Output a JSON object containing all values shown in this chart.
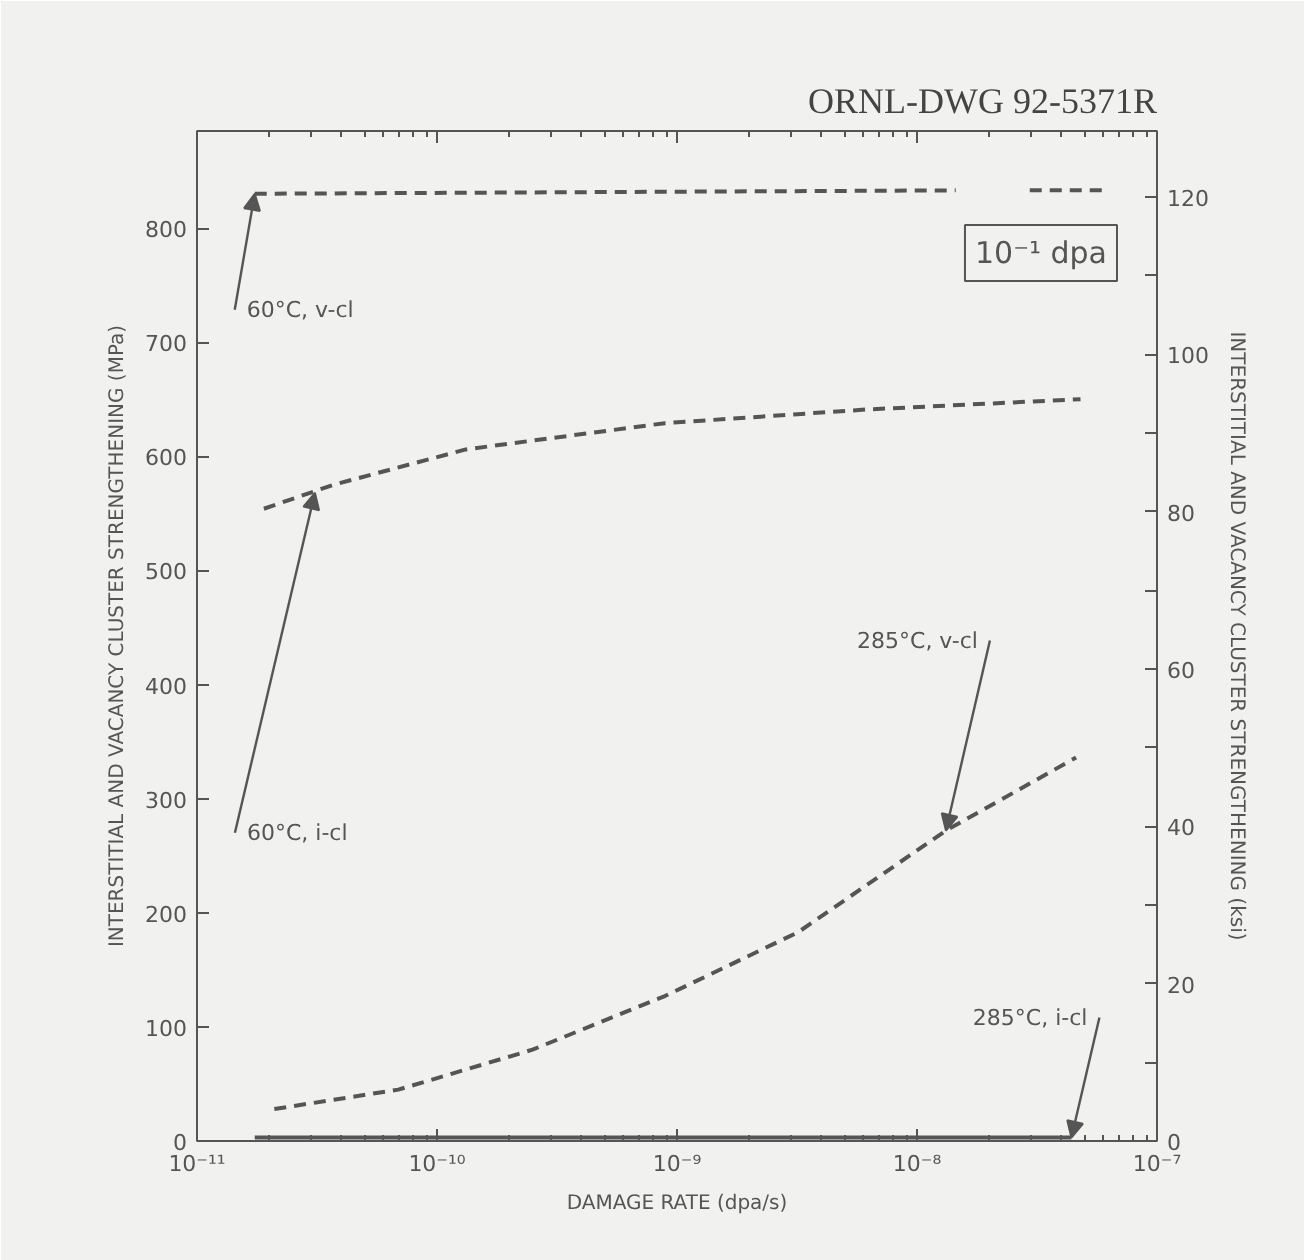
{
  "chart_data": {
    "type": "line",
    "title": "ORNL-DWG 92-5371R",
    "xlabel": "DAMAGE RATE (dpa/s)",
    "ylabel": "INTERSTITIAL AND VACANCY CLUSTER STRENGTHENING (MPa)",
    "y2label": "INTERSTITIAL AND VACANCY CLUSTER STRENGTHENING (ksi)",
    "log": "x",
    "xlim": [
      1e-11,
      1e-07
    ],
    "xticks": [
      {
        "value": 1e-11,
        "label": "10⁻¹¹"
      },
      {
        "value": 1e-10,
        "label": "10⁻¹⁰"
      },
      {
        "value": 1e-09,
        "label": "10⁻⁹"
      },
      {
        "value": 1e-08,
        "label": "10⁻⁸"
      },
      {
        "value": 1e-07,
        "label": "10⁻⁷"
      }
    ],
    "ylim": [
      0,
      885
    ],
    "yticks": [
      0,
      100,
      200,
      300,
      400,
      500,
      600,
      700,
      800
    ],
    "y2lim": [
      0,
      128.4
    ],
    "y2ticks": [
      0,
      {
        "value": 10,
        "label": null
      },
      20,
      {
        "value": 30,
        "label": null
      },
      40,
      {
        "value": 50,
        "label": null
      },
      60,
      {
        "value": 70,
        "label": null
      },
      80,
      {
        "value": 90,
        "label": null
      },
      100,
      {
        "value": 110,
        "label": null
      },
      120
    ],
    "grid": false,
    "marker": "none",
    "series": [
      {
        "color": "#555555",
        "line_style": "dashed",
        "x": [
          1.74e-11,
          1.45e-08,
          2.2e-08,
          2.95e-08,
          5.9e-08
        ],
        "values": [
          830,
          833,
          null,
          833,
          833
        ]
      },
      {
        "color": "#555555",
        "line_style": "dashed",
        "x": [
          1.9e-11,
          3.7e-11,
          1.32e-10,
          8.9e-10,
          6.2e-09,
          4.8e-08
        ],
        "values": [
          554,
          575,
          606,
          629,
          641,
          650
        ]
      },
      {
        "color": "#555555",
        "line_style": "dashed",
        "x": [
          2.1e-11,
          6.9e-11,
          2.5e-10,
          8.9e-10,
          3.2e-09,
          1.32e-08,
          4.6e-08
        ],
        "values": [
          28,
          45,
          80,
          127,
          183,
          272,
          336
        ]
      },
      {
        "color": "#555555",
        "line_style": "solid",
        "x": [
          1.74e-11,
          4.4e-08
        ],
        "values": [
          3,
          3
        ]
      }
    ],
    "annotations": [
      {
        "text": "60°C, v-cl",
        "x": 1.74e-11,
        "y": 830
      },
      {
        "text": "60°C, i-cl",
        "x": 3.1e-11,
        "y": 568
      },
      {
        "text": "285°C, v-cl",
        "x": 1.32e-08,
        "y": 272
      },
      {
        "text": "285°C, i-cl",
        "x": 4.4e-08,
        "y": 3
      },
      "10⁻¹ dpa"
    ]
  }
}
